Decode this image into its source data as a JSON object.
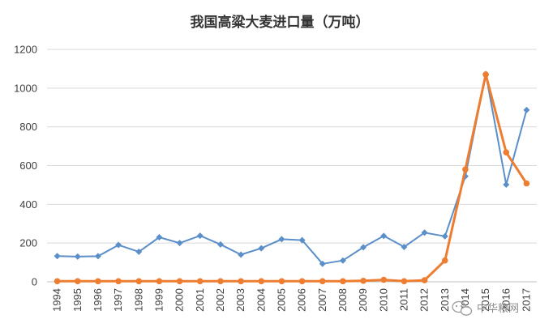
{
  "chart_data": {
    "type": "line",
    "title": "我国高粱大麦进口量（万吨）",
    "xlabel": "",
    "ylabel": "",
    "categories": [
      "1994",
      "1995",
      "1996",
      "1997",
      "1998",
      "1999",
      "2000",
      "2001",
      "2002",
      "2003",
      "2004",
      "2005",
      "2006",
      "2007",
      "2008",
      "2009",
      "2010",
      "2011",
      "2012",
      "2013",
      "2014",
      "2015",
      "2016",
      "2017"
    ],
    "series": [
      {
        "color": "#5b8fc9",
        "marker": "diamond",
        "values": [
          133,
          130,
          132,
          190,
          155,
          230,
          200,
          238,
          193,
          140,
          173,
          220,
          215,
          93,
          110,
          178,
          237,
          180,
          254,
          235,
          545,
          1073,
          502,
          887
        ]
      },
      {
        "color": "#ed7d31",
        "marker": "circle",
        "values": [
          3,
          3,
          3,
          3,
          3,
          3,
          3,
          3,
          3,
          3,
          3,
          3,
          3,
          3,
          3,
          5,
          10,
          3,
          8,
          110,
          580,
          1070,
          668,
          508
        ]
      }
    ],
    "ylim": [
      0,
      1200
    ],
    "yticks": [
      0,
      200,
      400,
      600,
      800,
      1000,
      1200
    ],
    "grid": true
  },
  "watermark": {
    "text": "中华粮网",
    "icon": "wechat-icon"
  }
}
